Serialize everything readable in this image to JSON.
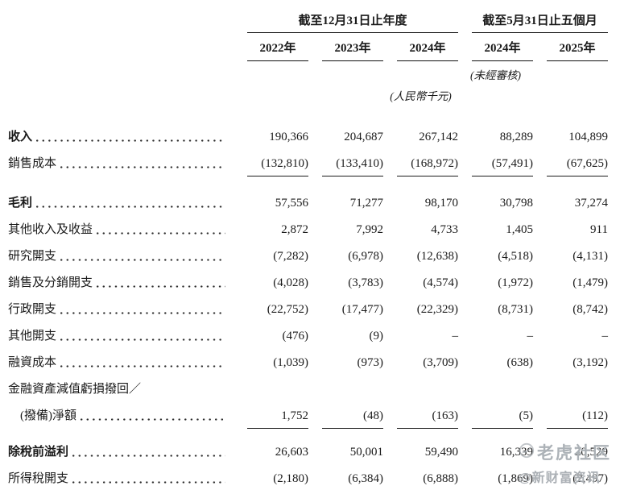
{
  "table": {
    "col_groups": [
      {
        "title": "截至12月31日止年度",
        "cols": [
          "2022年",
          "2023年",
          "2024年"
        ]
      },
      {
        "title": "截至5月31日止五個月",
        "cols": [
          "2024年",
          "2025年"
        ]
      }
    ],
    "notes": {
      "unaudited": "(未經審核)",
      "currency_unit": "(人民幣千元)"
    },
    "rows": [
      {
        "label": "收入",
        "bold": true,
        "values": [
          "190,366",
          "204,687",
          "267,142",
          "88,289",
          "104,899"
        ]
      },
      {
        "label": "銷售成本",
        "underline": true,
        "space_after": true,
        "values": [
          "(132,810)",
          "(133,410)",
          "(168,972)",
          "(57,491)",
          "(67,625)"
        ]
      },
      {
        "label": "毛利",
        "bold": true,
        "values": [
          "57,556",
          "71,277",
          "98,170",
          "30,798",
          "37,274"
        ]
      },
      {
        "label": "其他收入及收益",
        "values": [
          "2,872",
          "7,992",
          "4,733",
          "1,405",
          "911"
        ]
      },
      {
        "label": "研究開支",
        "values": [
          "(7,282)",
          "(6,978)",
          "(12,638)",
          "(4,518)",
          "(4,131)"
        ]
      },
      {
        "label": "銷售及分銷開支",
        "values": [
          "(4,028)",
          "(3,783)",
          "(4,574)",
          "(1,972)",
          "(1,479)"
        ]
      },
      {
        "label": "行政開支",
        "values": [
          "(22,752)",
          "(17,477)",
          "(22,329)",
          "(8,731)",
          "(8,742)"
        ]
      },
      {
        "label": "其他開支",
        "values": [
          "(476)",
          "(9)",
          "–",
          "–",
          "–"
        ]
      },
      {
        "label": "融資成本",
        "values": [
          "(1,039)",
          "(973)",
          "(3,709)",
          "(638)",
          "(3,192)"
        ]
      },
      {
        "label": "金融資產減值虧損撥回／",
        "no_dots": true,
        "values": null
      },
      {
        "label": "(撥備)淨額",
        "indent": true,
        "underline": true,
        "space_after2": true,
        "values": [
          "1,752",
          "(48)",
          "(163)",
          "(5)",
          "(112)"
        ]
      },
      {
        "label": "除稅前溢利",
        "bold": true,
        "values": [
          "26,603",
          "50,001",
          "59,490",
          "16,339",
          "20,529"
        ]
      },
      {
        "label": "所得稅開支",
        "underline": true,
        "values": [
          "(2,180)",
          "(6,384)",
          "(6,888)",
          "(1,869)",
          "(2,497)"
        ]
      }
    ]
  },
  "watermark": {
    "brand": "老虎社区",
    "handle": "@新财富资讯"
  }
}
